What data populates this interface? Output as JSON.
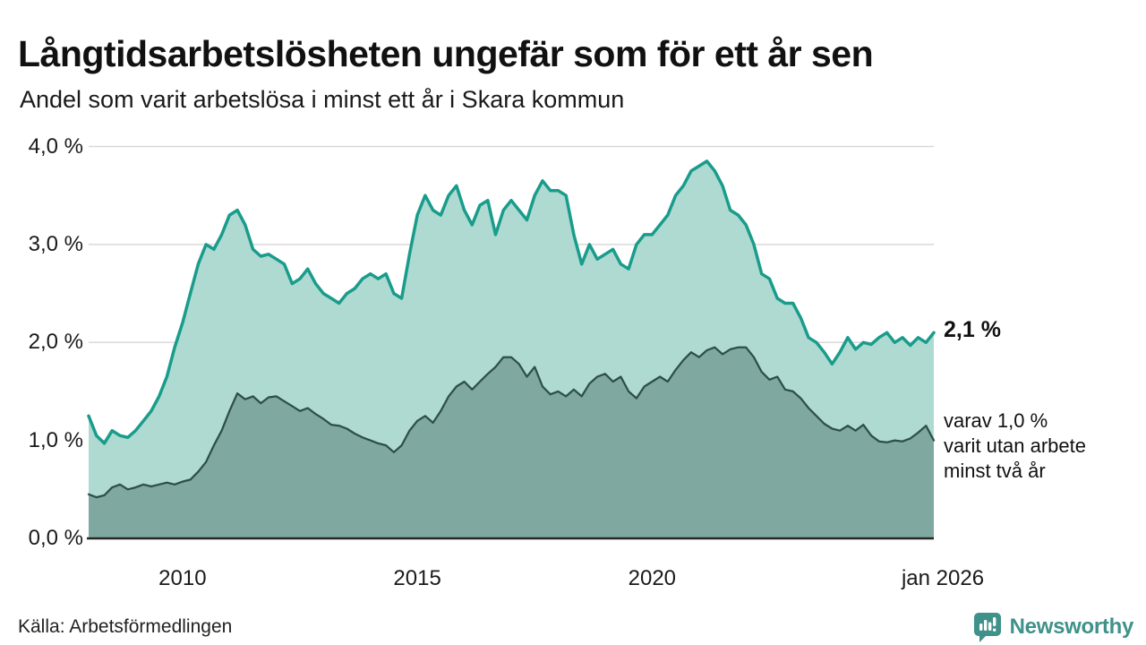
{
  "header": {
    "title": "Långtidsarbetslösheten ungefär som för ett år sen",
    "subtitle": "Andel som varit arbetslösa i minst ett år i Skara kommun"
  },
  "chart_data": {
    "type": "area",
    "title": "Långtidsarbetslösheten ungefär som för ett år sen",
    "subtitle": "Andel som varit arbetslösa i minst ett år i Skara kommun",
    "unit": "%",
    "x_range": [
      2008.0,
      2026.0
    ],
    "y_range": [
      0.0,
      4.0
    ],
    "x_step_years": 0.166667,
    "grid": true,
    "y_ticks": [
      {
        "label": "4,0 %",
        "value": 4.0
      },
      {
        "label": "3,0 %",
        "value": 3.0
      },
      {
        "label": "2,0 %",
        "value": 2.0
      },
      {
        "label": "1,0 %",
        "value": 1.0
      },
      {
        "label": "0,0 %",
        "value": 0.0
      }
    ],
    "x_ticks": [
      {
        "label": "2010",
        "year": 2010
      },
      {
        "label": "2015",
        "year": 2015
      },
      {
        "label": "2020",
        "year": 2020
      },
      {
        "label": "jan 2026",
        "year": 2026
      }
    ],
    "colors": {
      "line_one_year": "#199c8b",
      "fill_one_year": "#abd8d0",
      "line_two_years": "#2e4f48",
      "fill_two_years": "#7ca69d",
      "gridline": "#d9d9d9",
      "baseline": "#262626"
    },
    "series": [
      {
        "name": "Arbetslösa minst ett år",
        "line_color": "#199c8b",
        "fill_color": "#abd8d0",
        "line_width": 3.5,
        "values": [
          1.25,
          1.05,
          0.97,
          1.1,
          1.05,
          1.03,
          1.1,
          1.2,
          1.3,
          1.45,
          1.65,
          1.95,
          2.2,
          2.5,
          2.8,
          3.0,
          2.95,
          3.1,
          3.3,
          3.35,
          3.2,
          2.95,
          2.88,
          2.9,
          2.85,
          2.8,
          2.6,
          2.65,
          2.75,
          2.6,
          2.5,
          2.45,
          2.4,
          2.5,
          2.55,
          2.65,
          2.7,
          2.65,
          2.7,
          2.5,
          2.45,
          2.9,
          3.3,
          3.5,
          3.35,
          3.3,
          3.5,
          3.6,
          3.35,
          3.2,
          3.4,
          3.45,
          3.1,
          3.35,
          3.45,
          3.35,
          3.25,
          3.5,
          3.65,
          3.55,
          3.55,
          3.5,
          3.1,
          2.8,
          3.0,
          2.85,
          2.9,
          2.95,
          2.8,
          2.75,
          3.0,
          3.1,
          3.1,
          3.2,
          3.3,
          3.5,
          3.6,
          3.75,
          3.8,
          3.85,
          3.75,
          3.6,
          3.35,
          3.3,
          3.2,
          3.0,
          2.7,
          2.65,
          2.45,
          2.4,
          2.4,
          2.25,
          2.05,
          2.0,
          1.9,
          1.78,
          1.9,
          2.05,
          1.93,
          2.0,
          1.98,
          2.05,
          2.1,
          2.0,
          2.05,
          1.97,
          2.05,
          2.0,
          2.1
        ]
      },
      {
        "name": "Varav utan arbete minst två år",
        "line_color": "#2e4f48",
        "fill_color": "#7ca69d",
        "line_width": 2.25,
        "values": [
          0.45,
          0.42,
          0.44,
          0.52,
          0.55,
          0.5,
          0.52,
          0.55,
          0.53,
          0.55,
          0.57,
          0.55,
          0.58,
          0.6,
          0.68,
          0.78,
          0.95,
          1.1,
          1.3,
          1.48,
          1.42,
          1.45,
          1.38,
          1.44,
          1.45,
          1.4,
          1.35,
          1.3,
          1.33,
          1.27,
          1.22,
          1.16,
          1.15,
          1.12,
          1.07,
          1.03,
          1.0,
          0.97,
          0.95,
          0.88,
          0.95,
          1.1,
          1.2,
          1.25,
          1.18,
          1.3,
          1.45,
          1.55,
          1.6,
          1.52,
          1.6,
          1.68,
          1.75,
          1.85,
          1.85,
          1.78,
          1.65,
          1.75,
          1.55,
          1.47,
          1.5,
          1.45,
          1.52,
          1.45,
          1.58,
          1.65,
          1.68,
          1.6,
          1.65,
          1.5,
          1.43,
          1.55,
          1.6,
          1.65,
          1.6,
          1.72,
          1.82,
          1.9,
          1.85,
          1.92,
          1.95,
          1.88,
          1.93,
          1.95,
          1.95,
          1.85,
          1.7,
          1.62,
          1.65,
          1.52,
          1.5,
          1.43,
          1.33,
          1.25,
          1.17,
          1.12,
          1.1,
          1.15,
          1.1,
          1.16,
          1.05,
          0.99,
          0.98,
          1.0,
          0.99,
          1.02,
          1.08,
          1.15,
          1.0
        ]
      }
    ],
    "end_labels": {
      "primary": "2,1 %",
      "secondary_lines": [
        "varav 1,0 %",
        "varit utan arbete",
        "minst två år"
      ]
    }
  },
  "footer": {
    "source": "Källa: Arbetsförmedlingen",
    "brand": "Newsworthy",
    "brand_color": "#3f918a"
  }
}
